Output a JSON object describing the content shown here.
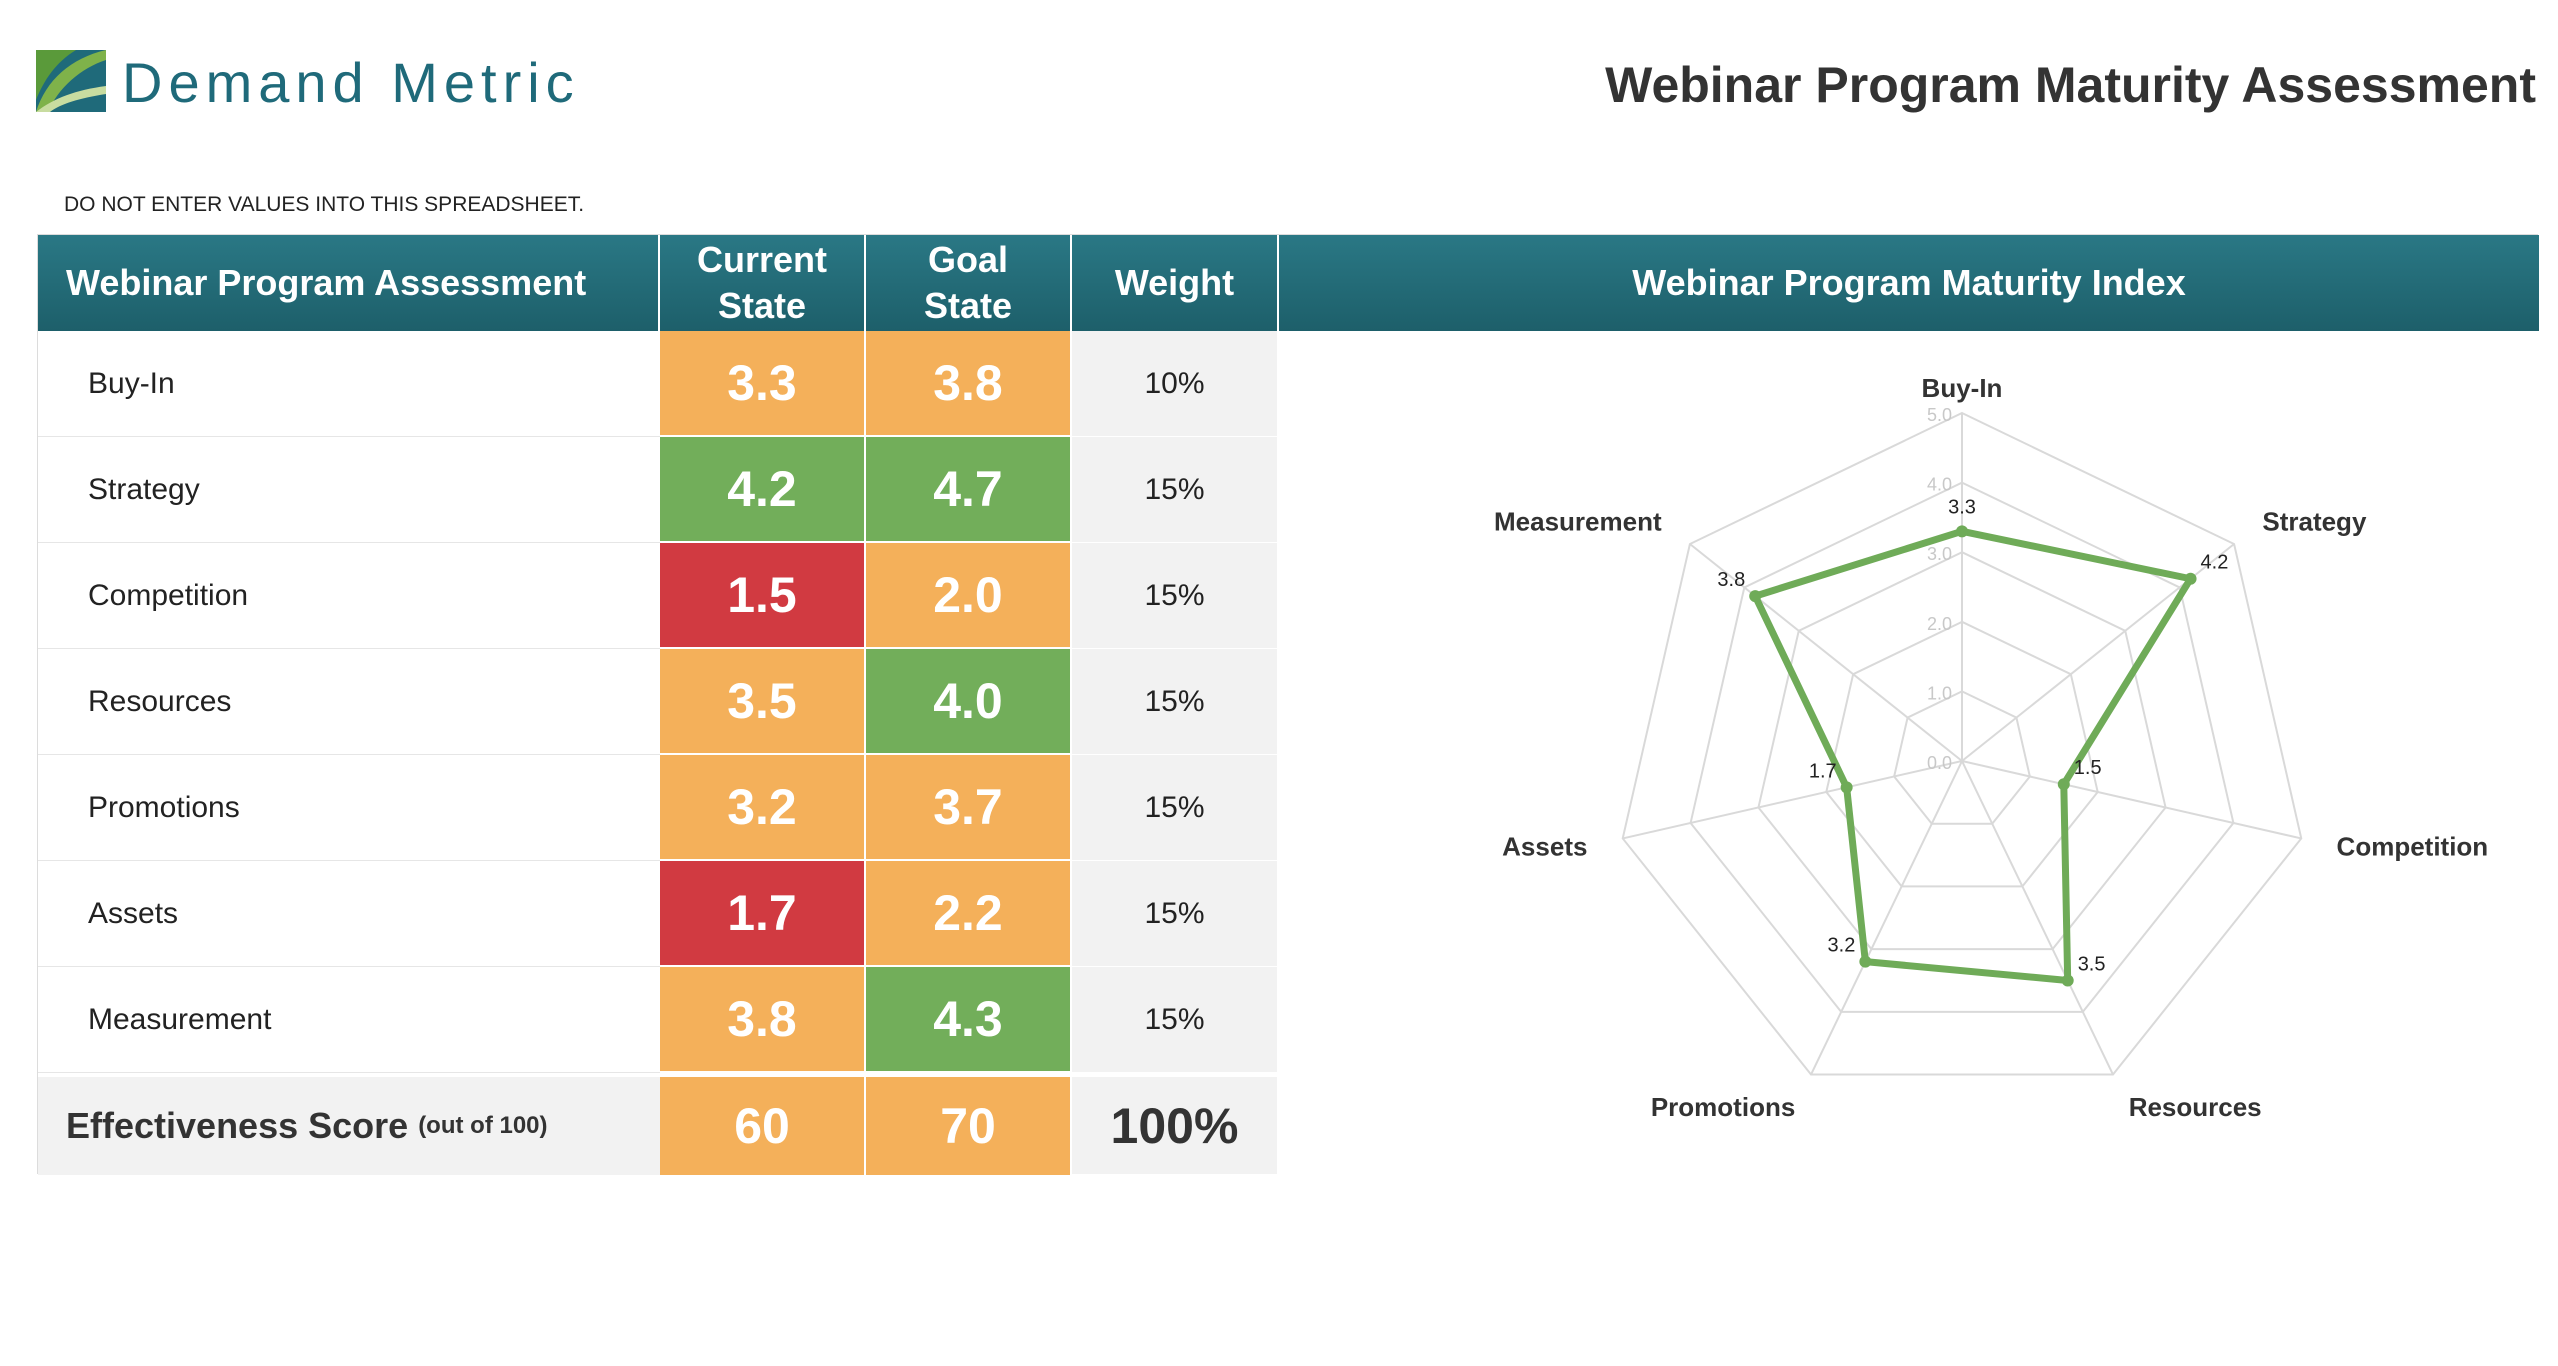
{
  "brand": {
    "name": "Demand Metric"
  },
  "page_title": "Webinar Program Maturity Assessment",
  "notice": "DO NOT ENTER VALUES INTO THIS SPREADSHEET.",
  "table": {
    "headers": {
      "assessment": "Webinar Program Assessment",
      "current_line1": "Current",
      "current_line2": "State",
      "goal_line1": "Goal",
      "goal_line2": "State",
      "weight": "Weight",
      "index": "Webinar Program Maturity Index"
    },
    "rows": [
      {
        "label": "Buy-In",
        "current": "3.3",
        "goal": "3.8",
        "weight": "10%",
        "current_status": "orange",
        "goal_status": "orange"
      },
      {
        "label": "Strategy",
        "current": "4.2",
        "goal": "4.7",
        "weight": "15%",
        "current_status": "green",
        "goal_status": "green"
      },
      {
        "label": "Competition",
        "current": "1.5",
        "goal": "2.0",
        "weight": "15%",
        "current_status": "red",
        "goal_status": "orange"
      },
      {
        "label": "Resources",
        "current": "3.5",
        "goal": "4.0",
        "weight": "15%",
        "current_status": "orange",
        "goal_status": "green"
      },
      {
        "label": "Promotions",
        "current": "3.2",
        "goal": "3.7",
        "weight": "15%",
        "current_status": "orange",
        "goal_status": "orange"
      },
      {
        "label": "Assets",
        "current": "1.7",
        "goal": "2.2",
        "weight": "15%",
        "current_status": "red",
        "goal_status": "orange"
      },
      {
        "label": "Measurement",
        "current": "3.8",
        "goal": "4.3",
        "weight": "15%",
        "current_status": "orange",
        "goal_status": "green"
      }
    ],
    "score": {
      "label": "Effectiveness Score",
      "sub": "(out of 100)",
      "current": "60",
      "goal": "70",
      "weight": "100%"
    }
  },
  "colors": {
    "orange": "#f4b05a",
    "green": "#72ae5a",
    "red": "#d13a41",
    "header": "#236d79",
    "line": "#6fab58"
  },
  "chart_data": {
    "type": "radar",
    "axes": [
      "Buy-In",
      "Strategy",
      "Competition",
      "Resources",
      "Promotions",
      "Assets",
      "Measurement"
    ],
    "ticks": [
      "0.0",
      "1.0",
      "2.0",
      "3.0",
      "4.0",
      "5.0"
    ],
    "range": [
      0,
      5
    ],
    "series": [
      {
        "values": [
          3.3,
          4.2,
          1.5,
          3.5,
          3.2,
          1.7,
          3.8
        ],
        "labels": [
          "3.3",
          "4.2",
          "1.5",
          "3.5",
          "3.2",
          "1.7",
          "3.8"
        ]
      }
    ]
  }
}
